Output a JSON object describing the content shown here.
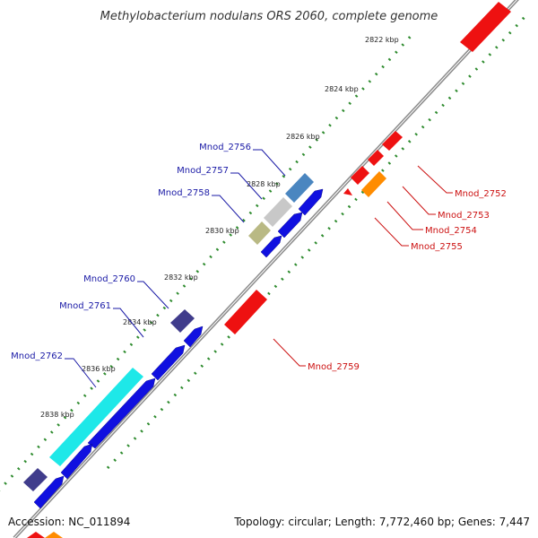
{
  "title": "Methylobacterium nodulans ORS 2060, complete genome",
  "footer": {
    "accession": "Accession: NC_011894",
    "topology": "Topology: circular; Length: 7,772,460 bp; Genes: 7,447"
  },
  "colors": {
    "backbone": "#8c8c8c",
    "tick": "#2e8b2e",
    "label_reverse": "#1a1aa6",
    "label_forward": "#cc1111",
    "forward_gene": "#ee1111",
    "cds_blue": "#1010e0"
  },
  "scale_ticks": [
    "2822 kbp",
    "2824 kbp",
    "2826 kbp",
    "2828 kbp",
    "2830 kbp",
    "2832 kbp",
    "2834 kbp",
    "2836 kbp",
    "2838 kbp"
  ],
  "genes_reverse": [
    {
      "label": "Mnod_2756",
      "color": "#4a86c0"
    },
    {
      "label": "Mnod_2757",
      "color": "#c8c8c8"
    },
    {
      "label": "Mnod_2758",
      "color": "#b9b984"
    },
    {
      "label": "Mnod_2760",
      "color": "#403c8c"
    },
    {
      "label": "Mnod_2761",
      "color": "#403c8c"
    },
    {
      "label": "Mnod_2762",
      "color": "#1ee8e8"
    }
  ],
  "genes_forward": [
    {
      "label": "Mnod_2752",
      "color": "#ee1111"
    },
    {
      "label": "Mnod_2753",
      "color": "#ee1111"
    },
    {
      "label": "Mnod_2754",
      "color": "#ff8c00"
    },
    {
      "label": "Mnod_2755",
      "color": "#ee1111"
    },
    {
      "label": "Mnod_2759",
      "color": "#ee1111"
    }
  ]
}
